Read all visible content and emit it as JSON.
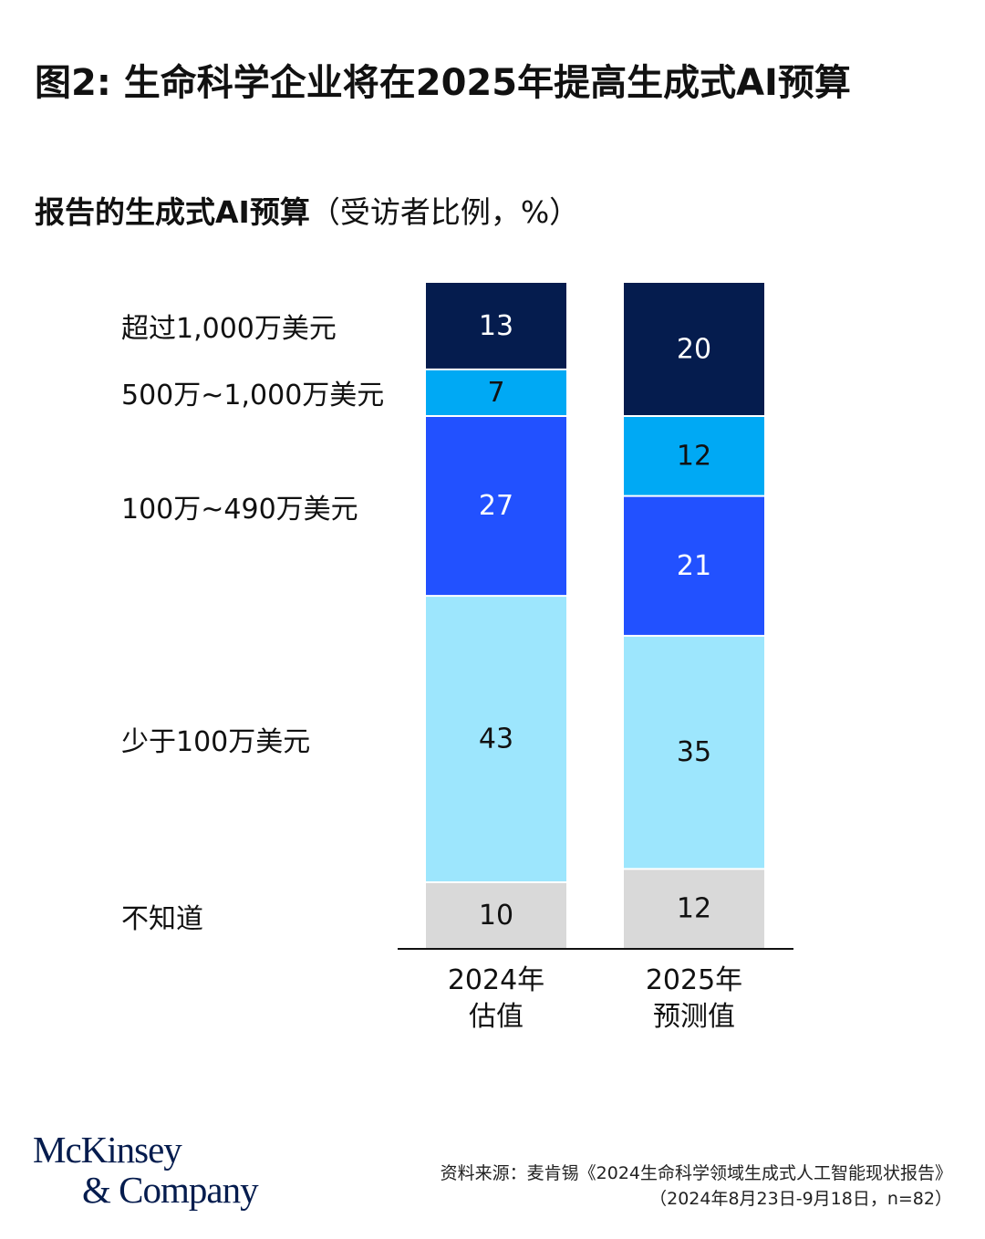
{
  "header": {
    "title": "图2: 生命科学企业将在2025年提高生成式AI预算",
    "subtitle_bold": "报告的生成式AI预算",
    "subtitle_normal": "（受访者比例，%）"
  },
  "chart_data": {
    "type": "bar",
    "stacked": true,
    "categories": [
      {
        "line1": "2024年",
        "line2": "估值"
      },
      {
        "line1": "2025年",
        "line2": "预测值"
      }
    ],
    "series": [
      {
        "name": "不知道",
        "values": [
          10,
          12
        ],
        "color": "#d9d9d9",
        "text_color": "#111111"
      },
      {
        "name": "少于100万美元",
        "values": [
          43,
          35
        ],
        "color": "#9de6fd",
        "text_color": "#111111"
      },
      {
        "name": "100万~490万美元",
        "values": [
          27,
          21
        ],
        "color": "#2251ff",
        "text_color": "#ffffff"
      },
      {
        "name": "500万~1,000万美元",
        "values": [
          7,
          12
        ],
        "color": "#00a9f4",
        "text_color": "#111111"
      },
      {
        "name": "超过1,000万美元",
        "values": [
          13,
          20
        ],
        "color": "#051c4e",
        "text_color": "#ffffff"
      }
    ],
    "ylim": [
      0,
      100
    ],
    "legend": "left"
  },
  "logo": {
    "line1": "McKinsey",
    "line2": "& Company"
  },
  "source": {
    "text": "资料来源：麦肯锡《2024生命科学领域生成式人工智能现状报告》（2024年8月23日-9月18日，n=82）"
  }
}
